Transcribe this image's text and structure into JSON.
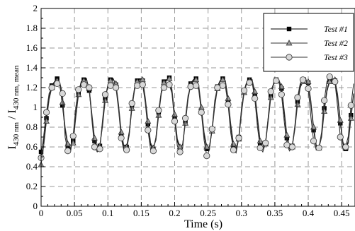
{
  "chart_data": {
    "type": "line",
    "title": "",
    "xlabel": "Time (s)",
    "ylabel_main": "I",
    "ylabel_sub": "430 nm",
    "ylabel_sep": " / I",
    "ylabel_sub2": "430 nm, mean",
    "xlim": [
      0,
      0.47
    ],
    "ylim": [
      0,
      2
    ],
    "x_ticks": [
      "0",
      "0.05",
      "0.1",
      "0.15",
      "0.2",
      "0.25",
      "0.3",
      "0.35",
      "0.4",
      "0.45"
    ],
    "y_ticks": [
      "0",
      "0.2",
      "0.4",
      "0.6",
      "0.8",
      "1",
      "1.2",
      "1.4",
      "1.6",
      "1.8",
      "2"
    ],
    "grid": "dashed",
    "legend_position": "top-right",
    "period": 0.0375,
    "series": [
      {
        "name": "Test #1",
        "marker": "square",
        "color": "#000000",
        "fill": "#000000",
        "x": [
          0.0,
          0.004,
          0.008,
          0.012,
          0.016,
          0.02,
          0.024,
          0.028,
          0.032,
          0.036,
          0.04,
          0.044,
          0.048,
          0.052,
          0.056,
          0.06,
          0.064,
          0.068,
          0.072,
          0.076,
          0.08,
          0.084,
          0.088,
          0.092,
          0.096,
          0.1,
          0.104,
          0.108,
          0.112,
          0.116,
          0.12,
          0.124,
          0.128,
          0.132,
          0.136,
          0.14,
          0.144,
          0.148,
          0.152,
          0.156,
          0.16,
          0.164,
          0.168,
          0.172,
          0.176,
          0.18,
          0.184,
          0.188,
          0.192,
          0.196,
          0.2,
          0.204,
          0.208,
          0.212,
          0.216,
          0.22,
          0.224,
          0.228,
          0.232,
          0.236,
          0.24,
          0.244,
          0.248,
          0.252,
          0.256,
          0.26,
          0.264,
          0.268,
          0.272,
          0.276,
          0.28,
          0.284,
          0.288,
          0.292,
          0.296,
          0.3,
          0.304,
          0.308,
          0.312,
          0.316,
          0.32,
          0.324,
          0.328,
          0.332,
          0.336,
          0.34,
          0.344,
          0.348,
          0.352,
          0.356,
          0.36,
          0.364,
          0.368,
          0.372,
          0.376,
          0.38,
          0.384,
          0.388,
          0.392,
          0.396,
          0.4,
          0.404,
          0.408,
          0.412,
          0.416,
          0.42,
          0.424,
          0.428,
          0.432,
          0.436,
          0.44,
          0.444,
          0.448,
          0.452,
          0.456,
          0.46,
          0.464,
          0.468
        ],
        "y": [
          0.55,
          0.66,
          0.89,
          1.1,
          1.22,
          1.26,
          1.29,
          1.23,
          1.02,
          0.77,
          0.61,
          0.58,
          0.66,
          0.93,
          1.15,
          1.26,
          1.28,
          1.29,
          1.17,
          0.91,
          0.66,
          0.58,
          0.61,
          0.84,
          1.09,
          1.23,
          1.28,
          1.29,
          1.23,
          1.0,
          0.72,
          0.58,
          0.6,
          0.75,
          1.02,
          1.2,
          1.27,
          1.29,
          1.27,
          1.08,
          0.83,
          0.62,
          0.58,
          0.69,
          0.95,
          1.16,
          1.26,
          1.28,
          1.3,
          1.15,
          0.9,
          0.66,
          0.58,
          0.63,
          0.86,
          1.1,
          1.24,
          1.28,
          1.29,
          1.21,
          0.97,
          0.72,
          0.58,
          0.6,
          0.78,
          1.04,
          1.21,
          1.27,
          1.29,
          1.26,
          1.06,
          0.8,
          0.61,
          0.58,
          0.7,
          0.97,
          1.17,
          1.26,
          1.28,
          1.28,
          1.13,
          0.87,
          0.64,
          0.58,
          0.64,
          0.89,
          1.12,
          1.24,
          1.28,
          1.28,
          1.19,
          0.94,
          0.69,
          0.58,
          0.61,
          0.8,
          1.06,
          1.22,
          1.27,
          1.28,
          1.25,
          1.03,
          0.77,
          0.6,
          0.59,
          0.72,
          0.99,
          1.18,
          1.27,
          1.28,
          1.27,
          1.1,
          0.84,
          0.63,
          0.58,
          0.66,
          0.92,
          1.14
        ]
      },
      {
        "name": "Test #2",
        "marker": "triangle",
        "color": "#333333",
        "fill": "#999999",
        "x": [
          0.0,
          0.004,
          0.008,
          0.012,
          0.016,
          0.02,
          0.024,
          0.028,
          0.032,
          0.036,
          0.04,
          0.044,
          0.048,
          0.052,
          0.056,
          0.06,
          0.064,
          0.068,
          0.072,
          0.076,
          0.08,
          0.084,
          0.088,
          0.092,
          0.096,
          0.1,
          0.104,
          0.108,
          0.112,
          0.116,
          0.12,
          0.124,
          0.128,
          0.132,
          0.136,
          0.14,
          0.144,
          0.148,
          0.152,
          0.156,
          0.16,
          0.164,
          0.168,
          0.172,
          0.176,
          0.18,
          0.184,
          0.188,
          0.192,
          0.196,
          0.2,
          0.204,
          0.208,
          0.212,
          0.216,
          0.22,
          0.224,
          0.228,
          0.232,
          0.236,
          0.24,
          0.244,
          0.248,
          0.252,
          0.256,
          0.26,
          0.264,
          0.268,
          0.272,
          0.276,
          0.28,
          0.284,
          0.288,
          0.292,
          0.296,
          0.3,
          0.304,
          0.308,
          0.312,
          0.316,
          0.32,
          0.324,
          0.328,
          0.332,
          0.336,
          0.34,
          0.344,
          0.348,
          0.352,
          0.356,
          0.36,
          0.364,
          0.368,
          0.372,
          0.376,
          0.38,
          0.384,
          0.388,
          0.392,
          0.396,
          0.4,
          0.404,
          0.408,
          0.412,
          0.416,
          0.42,
          0.424,
          0.428,
          0.432,
          0.436,
          0.44,
          0.444,
          0.448,
          0.452,
          0.456,
          0.46,
          0.464,
          0.468
        ],
        "y": [
          0.42,
          0.62,
          0.86,
          1.08,
          1.2,
          1.25,
          1.27,
          1.24,
          1.05,
          0.8,
          0.63,
          0.59,
          0.64,
          0.9,
          1.13,
          1.24,
          1.27,
          1.28,
          1.19,
          0.94,
          0.69,
          0.6,
          0.61,
          0.81,
          1.07,
          1.22,
          1.27,
          1.28,
          1.24,
          1.03,
          0.75,
          0.61,
          0.6,
          0.73,
          0.99,
          1.18,
          1.26,
          1.28,
          1.28,
          1.1,
          0.86,
          0.64,
          0.59,
          0.67,
          0.92,
          1.14,
          1.25,
          1.27,
          1.29,
          1.18,
          0.93,
          0.68,
          0.6,
          0.62,
          0.84,
          1.08,
          1.23,
          1.27,
          1.28,
          1.23,
          1.0,
          0.75,
          0.6,
          0.6,
          0.76,
          1.01,
          1.19,
          1.26,
          1.28,
          1.27,
          1.09,
          0.83,
          0.63,
          0.59,
          0.68,
          0.94,
          1.15,
          1.25,
          1.27,
          1.28,
          1.16,
          0.9,
          0.66,
          0.59,
          0.63,
          0.86,
          1.1,
          1.23,
          1.27,
          1.28,
          1.21,
          0.97,
          0.72,
          0.6,
          0.6,
          0.78,
          1.03,
          1.2,
          1.26,
          1.27,
          1.26,
          1.06,
          0.8,
          0.62,
          0.59,
          0.7,
          0.96,
          1.16,
          1.26,
          1.28,
          1.28,
          1.13,
          0.87,
          0.65,
          0.59,
          0.64,
          0.89,
          1.12
        ]
      },
      {
        "name": "Test #3",
        "marker": "circle",
        "color": "#333333",
        "fill": "#d8d8d8",
        "x": [
          0.0,
          0.004,
          0.008,
          0.012,
          0.016,
          0.02,
          0.024,
          0.028,
          0.032,
          0.036,
          0.04,
          0.044,
          0.048,
          0.052,
          0.056,
          0.06,
          0.064,
          0.068,
          0.072,
          0.076,
          0.08,
          0.084,
          0.088,
          0.092,
          0.096,
          0.1,
          0.104,
          0.108,
          0.112,
          0.116,
          0.12,
          0.124,
          0.128,
          0.132,
          0.136,
          0.14,
          0.144,
          0.148,
          0.152,
          0.156,
          0.16,
          0.164,
          0.168,
          0.172,
          0.176,
          0.18,
          0.184,
          0.188,
          0.192,
          0.196,
          0.2,
          0.204,
          0.208,
          0.212,
          0.216,
          0.22,
          0.224,
          0.228,
          0.232,
          0.236,
          0.24,
          0.244,
          0.248,
          0.252,
          0.256,
          0.26,
          0.264,
          0.268,
          0.272,
          0.276,
          0.28,
          0.284,
          0.288,
          0.292,
          0.296,
          0.3,
          0.304,
          0.308,
          0.312,
          0.316,
          0.32,
          0.324,
          0.328,
          0.332,
          0.336,
          0.34,
          0.344,
          0.348,
          0.352,
          0.356,
          0.36,
          0.364,
          0.368,
          0.372,
          0.376,
          0.38,
          0.384,
          0.388,
          0.392,
          0.396,
          0.4,
          0.404,
          0.408,
          0.412,
          0.416,
          0.42,
          0.424,
          0.428,
          0.432,
          0.436,
          0.44,
          0.444,
          0.448,
          0.452,
          0.456,
          0.46,
          0.464,
          0.468
        ],
        "y": [
          0.49,
          0.72,
          0.95,
          1.14,
          1.2,
          1.22,
          1.24,
          1.25,
          1.14,
          0.7,
          0.56,
          0.55,
          0.71,
          1.0,
          1.18,
          1.22,
          1.23,
          1.21,
          1.2,
          0.88,
          0.6,
          0.55,
          0.58,
          0.87,
          1.13,
          1.2,
          1.22,
          1.23,
          1.2,
          0.98,
          0.69,
          0.56,
          0.57,
          0.72,
          1.04,
          1.19,
          1.22,
          1.22,
          1.23,
          1.05,
          0.77,
          0.57,
          0.56,
          0.7,
          0.97,
          1.16,
          1.2,
          1.21,
          1.23,
          1.14,
          0.86,
          0.61,
          0.55,
          0.59,
          0.89,
          1.12,
          1.21,
          1.22,
          1.22,
          1.18,
          0.95,
          0.67,
          0.51,
          0.57,
          0.78,
          1.07,
          1.2,
          1.21,
          1.22,
          1.21,
          1.03,
          0.74,
          0.57,
          0.54,
          0.69,
          0.99,
          1.17,
          1.24,
          1.25,
          1.25,
          1.09,
          0.8,
          0.59,
          0.55,
          0.64,
          0.9,
          1.16,
          1.24,
          1.27,
          1.26,
          1.13,
          0.86,
          0.62,
          0.56,
          0.6,
          0.82,
          1.1,
          1.24,
          1.28,
          1.3,
          1.19,
          0.9,
          0.66,
          0.57,
          0.59,
          0.75,
          1.07,
          1.26,
          1.31,
          1.3,
          1.26,
          1.0,
          0.7,
          0.58,
          0.6,
          0.71,
          1.02,
          1.24
        ]
      }
    ]
  }
}
